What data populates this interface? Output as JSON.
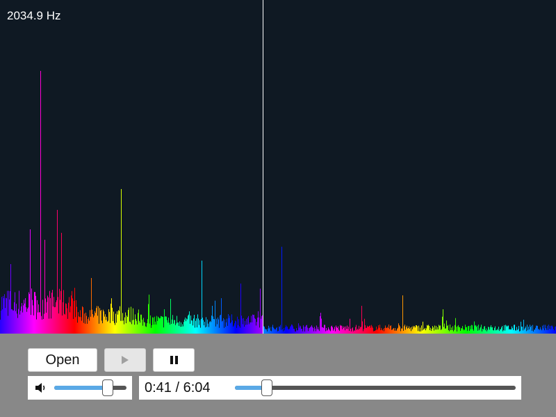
{
  "visualizer": {
    "frequency_readout": "2034.9 Hz",
    "background": "#0f1923",
    "cursor_color": "#ffffff"
  },
  "controls": {
    "open_label": "Open",
    "play_icon": "play-icon",
    "pause_icon": "pause-icon",
    "play_disabled": true
  },
  "volume": {
    "icon": "speaker-icon",
    "level": 0.74,
    "accent": "#5aa9e6"
  },
  "playback": {
    "time_display": "0:41 / 6:04",
    "progress": 0.113,
    "accent": "#5aa9e6"
  }
}
